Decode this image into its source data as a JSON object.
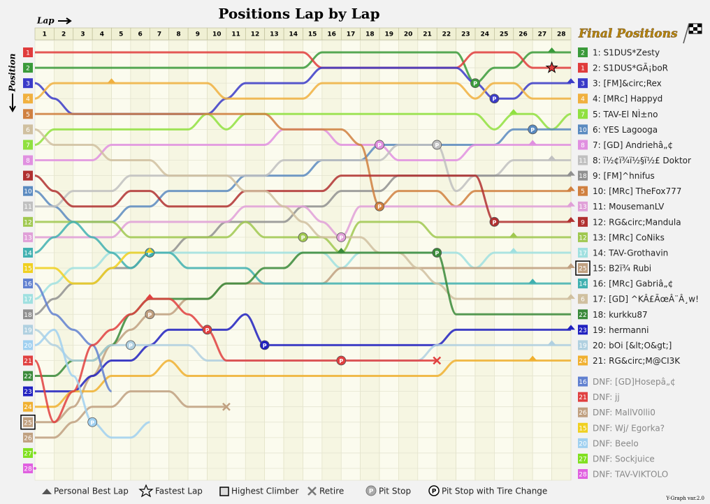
{
  "chart_data": {
    "type": "line",
    "title": "Positions Lap by Lap",
    "x_label": "Lap",
    "y_label": "Position",
    "legend_title": "Final Positions",
    "footer": "Y-Graph var.2.0",
    "pit_symbol": "P",
    "key": [
      "Personal Best Lap",
      "Fastest Lap",
      "Highest Climber",
      "Retire",
      "Pit Stop",
      "Pit Stop with Tire Change"
    ],
    "invert_y": true,
    "xlim": [
      0,
      28
    ],
    "ylim": [
      1,
      28
    ],
    "xticks": [
      1,
      2,
      3,
      4,
      5,
      6,
      7,
      8,
      9,
      10,
      11,
      12,
      13,
      14,
      15,
      16,
      17,
      18,
      19,
      20,
      21,
      22,
      23,
      24,
      25,
      26,
      27,
      28
    ],
    "yticks": [
      1,
      2,
      3,
      4,
      5,
      6,
      7,
      8,
      9,
      10,
      11,
      12,
      13,
      14,
      15,
      16,
      17,
      18,
      19,
      20,
      21,
      22,
      23,
      24,
      25,
      26,
      27,
      28
    ],
    "series": [
      {
        "name": "1: S1DUS*Zesty",
        "color": "#3a9a3a",
        "values": [
          2,
          2,
          2,
          2,
          2,
          2,
          2,
          2,
          2,
          2,
          2,
          2,
          2,
          2,
          2,
          1,
          1,
          1,
          1,
          1,
          1,
          1,
          1,
          3,
          2,
          2,
          1,
          1,
          1
        ],
        "pits": [
          23
        ],
        "best_lap": 27
      },
      {
        "name": "2: S1DUS*GÃ¡boR",
        "color": "#e03c3c",
        "values": [
          1,
          1,
          1,
          1,
          1,
          1,
          1,
          1,
          1,
          1,
          1,
          1,
          1,
          1,
          1,
          2,
          2,
          2,
          2,
          2,
          2,
          2,
          2,
          1,
          1,
          1,
          2,
          2,
          2
        ],
        "fastest_lap": 27
      },
      {
        "name": "3: [FM]&circ;Rex",
        "color": "#3a3ac8",
        "values": [
          3,
          4,
          5,
          5,
          5,
          5,
          5,
          5,
          5,
          5,
          4,
          3,
          3,
          3,
          3,
          2,
          2,
          2,
          2,
          2,
          2,
          2,
          2,
          3,
          4,
          4,
          3,
          3,
          3
        ],
        "pits": [
          24
        ],
        "best_lap": 28
      },
      {
        "name": "4: [MRc] Happyd",
        "color": "#f0b040",
        "values": [
          4,
          3,
          3,
          3,
          3,
          3,
          3,
          3,
          3,
          3,
          4,
          4,
          4,
          4,
          4,
          3,
          3,
          3,
          3,
          3,
          3,
          3,
          3,
          4,
          3,
          3,
          4,
          4,
          4
        ],
        "best_lap": 4
      },
      {
        "name": "5: TAV-El NÌ±no",
        "color": "#90e040",
        "values": [
          7,
          6,
          6,
          6,
          6,
          6,
          6,
          6,
          6,
          5,
          6,
          5,
          5,
          5,
          5,
          5,
          5,
          5,
          5,
          5,
          5,
          5,
          5,
          5,
          6,
          5,
          5,
          6,
          5
        ],
        "best_lap": 25
      },
      {
        "name": "6: YES Lagooga",
        "color": "#5a8ac0",
        "values": [
          10,
          11,
          12,
          12,
          12,
          11,
          11,
          10,
          10,
          10,
          10,
          9,
          9,
          9,
          9,
          8,
          8,
          8,
          7,
          7,
          7,
          7,
          7,
          7,
          7,
          6,
          6,
          6,
          6
        ],
        "pits": [
          26
        ]
      },
      {
        "name": "7: [GD] Andriehâ„¢",
        "color": "#e090e0",
        "values": [
          8,
          8,
          8,
          8,
          7,
          7,
          7,
          7,
          7,
          7,
          7,
          7,
          7,
          6,
          6,
          6,
          7,
          7,
          7,
          8,
          8,
          8,
          8,
          7,
          7,
          7,
          7,
          7,
          7
        ],
        "pits": [
          18
        ],
        "best_lap": 26
      },
      {
        "name": "8: ï½¢ï¾ï½§ï½£ Doktor",
        "color": "#c0c0c0",
        "values": [
          11,
          11,
          10,
          10,
          10,
          9,
          9,
          9,
          9,
          9,
          9,
          9,
          9,
          8,
          8,
          8,
          8,
          8,
          8,
          7,
          7,
          7,
          10,
          9,
          9,
          8,
          8,
          8,
          8
        ],
        "pits": [
          21
        ],
        "best_lap": 27
      },
      {
        "name": "9: [FM]^hnifus",
        "color": "#909090",
        "values": [
          18,
          17,
          16,
          16,
          15,
          15,
          14,
          14,
          13,
          13,
          12,
          12,
          12,
          12,
          11,
          11,
          10,
          10,
          10,
          9,
          9,
          9,
          9,
          9,
          9,
          9,
          9,
          9,
          9
        ],
        "best_lap": 28
      },
      {
        "name": "10: [MRc] TheFox777",
        "color": "#d08040",
        "values": [
          5,
          5,
          5,
          5,
          5,
          5,
          5,
          5,
          5,
          5,
          5,
          5,
          5,
          6,
          6,
          6,
          6,
          7,
          11,
          10,
          10,
          10,
          11,
          10,
          10,
          10,
          10,
          10,
          10
        ],
        "pits": [
          18
        ],
        "best_lap": 28
      },
      {
        "name": "11: MousemanLV",
        "color": "#e0a0d8",
        "values": [
          13,
          13,
          13,
          13,
          13,
          12,
          12,
          12,
          12,
          12,
          12,
          11,
          11,
          11,
          11,
          12,
          13,
          11,
          11,
          11,
          11,
          11,
          11,
          11,
          11,
          11,
          11,
          11,
          11
        ],
        "pits": [
          16
        ],
        "best_lap": 28
      },
      {
        "name": "12: RG&circ;Mandula",
        "color": "#b03030",
        "values": [
          9,
          10,
          11,
          11,
          11,
          10,
          10,
          11,
          11,
          11,
          11,
          10,
          10,
          10,
          10,
          10,
          9,
          9,
          9,
          9,
          9,
          9,
          9,
          9,
          12,
          12,
          12,
          12,
          12
        ],
        "pits": [
          24
        ],
        "best_lap": 28
      },
      {
        "name": "13: [MRc] CoNiks",
        "color": "#a0c850",
        "values": [
          12,
          12,
          12,
          12,
          12,
          13,
          13,
          13,
          13,
          13,
          13,
          12,
          13,
          13,
          13,
          13,
          14,
          12,
          12,
          12,
          12,
          13,
          13,
          13,
          13,
          13,
          13,
          13,
          13
        ],
        "pits": [
          14
        ],
        "best_lap": 25
      },
      {
        "name": "14: TAV-Grothavin",
        "color": "#a0e0e0",
        "values": [
          17,
          16,
          15,
          15,
          14,
          14,
          14,
          14,
          14,
          14,
          14,
          14,
          14,
          14,
          14,
          14,
          15,
          14,
          14,
          14,
          14,
          14,
          14,
          15,
          14,
          14,
          14,
          14,
          14
        ],
        "best_lap": 25
      },
      {
        "name": "15: B2ï¾ Rubi",
        "color": "#c0a080",
        "values": [
          25,
          25,
          24,
          22,
          20,
          19,
          18,
          18,
          17,
          17,
          16,
          16,
          16,
          16,
          16,
          16,
          15,
          15,
          15,
          15,
          15,
          15,
          15,
          15,
          15,
          15,
          15,
          15,
          15
        ],
        "pits": [
          6
        ],
        "best_lap": 28,
        "highest_climber": true
      },
      {
        "name": "16: [MRc] Gabriâ„¢",
        "color": "#40b0b0",
        "values": [
          14,
          13,
          12,
          13,
          14,
          15,
          14,
          14,
          15,
          15,
          15,
          15,
          16,
          16,
          16,
          16,
          16,
          16,
          16,
          16,
          16,
          16,
          16,
          16,
          16,
          16,
          16,
          16,
          16
        ],
        "pits": [
          6
        ],
        "best_lap": 26
      },
      {
        "name": "17: [GD] ^KÂ£ÃœÂ¨Â¸w!",
        "color": "#d0c0a0",
        "values": [
          6,
          7,
          7,
          7,
          8,
          8,
          8,
          9,
          9,
          9,
          9,
          10,
          10,
          11,
          12,
          13,
          13,
          13,
          14,
          14,
          15,
          16,
          17,
          17,
          17,
          17,
          17,
          17,
          17
        ],
        "best_lap": 28
      },
      {
        "name": "18: kurkku87",
        "color": "#3a8a3a",
        "values": [
          22,
          22,
          21,
          21,
          20,
          18,
          17,
          17,
          17,
          17,
          16,
          16,
          15,
          15,
          14,
          14,
          14,
          14,
          14,
          14,
          14,
          14,
          18,
          18,
          18,
          18,
          18,
          18,
          18
        ],
        "pits": [
          21
        ],
        "best_lap": 16
      },
      {
        "name": "19: hermanni",
        "color": "#2020c0",
        "values": [
          23,
          23,
          23,
          22,
          21,
          21,
          20,
          19,
          19,
          19,
          19,
          18,
          20,
          20,
          20,
          20,
          20,
          20,
          20,
          20,
          20,
          20,
          19,
          19,
          19,
          19,
          19,
          19,
          19
        ],
        "pits": [
          12
        ],
        "best_lap": 28
      },
      {
        "name": "20: bOi [&lt;O&gt;]",
        "color": "#b0d0e0",
        "values": [
          19,
          20,
          21,
          21,
          20,
          20,
          20,
          20,
          20,
          21,
          21,
          21,
          21,
          21,
          21,
          21,
          21,
          21,
          21,
          21,
          21,
          20,
          20,
          20,
          20,
          20,
          20,
          20,
          20
        ],
        "pits": [
          5
        ],
        "best_lap": 27
      },
      {
        "name": "21: RG&circ;M@CI3K",
        "color": "#f0b030",
        "values": [
          24,
          24,
          23,
          23,
          22,
          22,
          22,
          21,
          22,
          22,
          22,
          22,
          22,
          22,
          22,
          22,
          22,
          22,
          22,
          22,
          22,
          22,
          21,
          21,
          21,
          21,
          21,
          21,
          21
        ],
        "best_lap": 26
      },
      {
        "name": "DNF: [GD]Hosepâ„¢",
        "color": "#6080d0",
        "values": [
          16,
          18,
          19,
          20,
          23
        ]
      },
      {
        "name": "DNF: jj",
        "color": "#e04040",
        "values": [
          21,
          25,
          23,
          20,
          19,
          18,
          17,
          17,
          18,
          19,
          21,
          21,
          21,
          21,
          21,
          21,
          21,
          21,
          21,
          21,
          21,
          21
        ],
        "pits": [
          9,
          16
        ],
        "best_lap": 6,
        "retired": true
      },
      {
        "name": "DNF: MallV0lli0",
        "color": "#c0a080",
        "values": [
          26,
          26,
          25,
          24,
          24,
          23,
          23,
          23,
          24,
          24,
          24
        ],
        "retired": true
      },
      {
        "name": "DNF: Wj/ Egorka?",
        "color": "#f0d020",
        "values": [
          15,
          15,
          16,
          16,
          15,
          14,
          14
        ],
        "best_lap": 6
      },
      {
        "name": "DNF: Beelo",
        "color": "#a0d0f0",
        "values": [
          20,
          19,
          22,
          25,
          26,
          26,
          25
        ],
        "pits": [
          3
        ]
      },
      {
        "name": "DNF: Sockjuice",
        "color": "#80e020",
        "values": [
          27
        ]
      },
      {
        "name": "DNF: TAV-VIKTOLO",
        "color": "#e060e0",
        "values": [
          28
        ]
      }
    ]
  }
}
